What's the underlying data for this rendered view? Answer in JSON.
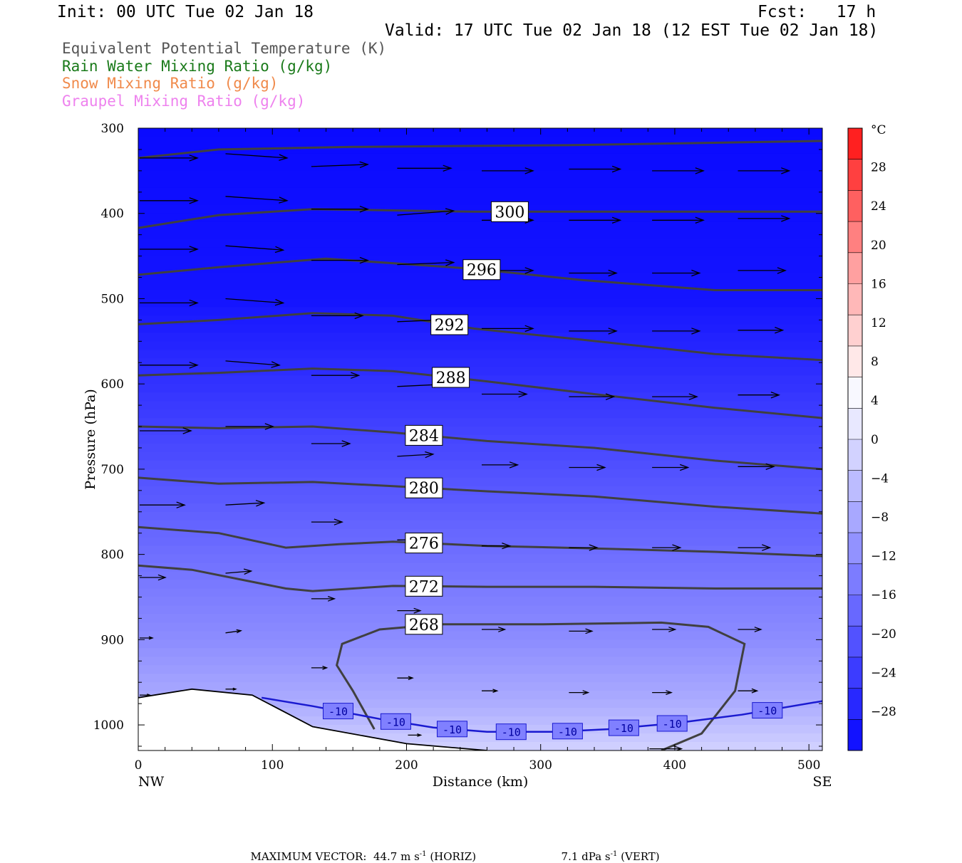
{
  "header": {
    "init": "Init: 00 UTC Tue 02 Jan 18",
    "fcst": "Fcst:   17 h",
    "valid": "Valid: 17 UTC Tue 02 Jan 18 (12 EST Tue 02 Jan 18)",
    "fields": [
      {
        "label": "Equivalent Potential Temperature (K)",
        "color": "#555555"
      },
      {
        "label": "Rain Water Mixing Ratio (g/kg)",
        "color": "#1a7a1a"
      },
      {
        "label": "Snow Mixing Ratio (g/kg)",
        "color": "#f08a4b"
      },
      {
        "label": "Graupel Mixing Ratio (g/kg)",
        "color": "#ee82ee"
      }
    ]
  },
  "footer": {
    "max_vector_label": "MAXIMUM VECTOR:",
    "horiz_value": "44.7 m s",
    "horiz_exp": "-1",
    "horiz_tag": "(HORIZ)",
    "vert_value": "7.1 dPa s",
    "vert_exp": "-1",
    "vert_tag": "(VERT)"
  },
  "chart_data": {
    "type": "cross-section",
    "xlabel": "Distance (km)",
    "ylabel": "Pressure (hPa)",
    "xlim": [
      0,
      510
    ],
    "ylim": [
      1030,
      300
    ],
    "x_ticks": [
      0,
      100,
      200,
      300,
      400,
      500
    ],
    "y_ticks": [
      300,
      400,
      500,
      600,
      700,
      800,
      900,
      1000
    ],
    "left_end_label": "NW",
    "right_end_label": "SE",
    "colorbar": {
      "unit": "°C",
      "labels": [
        28,
        24,
        20,
        16,
        12,
        8,
        4,
        0,
        -4,
        -8,
        -12,
        -16,
        -20,
        -24,
        -28
      ],
      "colors": [
        "#ff2020",
        "#ff4040",
        "#ff6060",
        "#ff8080",
        "#ffa0a0",
        "#ffb8b8",
        "#ffd0d0",
        "#ffe8e8",
        "#f8f8ff",
        "#e8e8ff",
        "#d2d2ff",
        "#bcbcff",
        "#a8a8ff",
        "#9292ff",
        "#7c7cff",
        "#6868ff",
        "#5252ff",
        "#3c3cff",
        "#2828ff",
        "#1212ff"
      ]
    },
    "temperature_shading": [
      {
        "p": 300,
        "t": -30
      },
      {
        "p": 500,
        "t": -28
      },
      {
        "p": 600,
        "t": -24
      },
      {
        "p": 700,
        "t": -20
      },
      {
        "p": 800,
        "t": -16
      },
      {
        "p": 900,
        "t": -12
      },
      {
        "p": 980,
        "t": -8
      },
      {
        "p": 1030,
        "t": -4
      }
    ],
    "theta_e_contours": [
      {
        "value": 300,
        "label_x": 277,
        "points": [
          [
            0,
            335
          ],
          [
            60,
            325
          ],
          [
            160,
            322
          ],
          [
            320,
            320
          ],
          [
            510,
            315
          ]
        ]
      },
      {
        "value": 300,
        "label_x": 277,
        "labeled": true,
        "points": [
          [
            0,
            417
          ],
          [
            60,
            402
          ],
          [
            130,
            395
          ],
          [
            250,
            398
          ],
          [
            400,
            398
          ],
          [
            510,
            398
          ]
        ]
      },
      {
        "value": 296,
        "label_x": 256,
        "labeled": true,
        "points": [
          [
            0,
            472
          ],
          [
            60,
            463
          ],
          [
            140,
            453
          ],
          [
            250,
            465
          ],
          [
            330,
            478
          ],
          [
            430,
            490
          ],
          [
            510,
            490
          ]
        ]
      },
      {
        "value": 292,
        "label_x": 232,
        "labeled": true,
        "points": [
          [
            0,
            530
          ],
          [
            60,
            525
          ],
          [
            130,
            517
          ],
          [
            190,
            520
          ],
          [
            250,
            535
          ],
          [
            330,
            548
          ],
          [
            430,
            565
          ],
          [
            510,
            572
          ]
        ]
      },
      {
        "value": 288,
        "label_x": 233,
        "labeled": true,
        "points": [
          [
            0,
            590
          ],
          [
            60,
            587
          ],
          [
            130,
            582
          ],
          [
            190,
            585
          ],
          [
            260,
            597
          ],
          [
            340,
            612
          ],
          [
            430,
            628
          ],
          [
            510,
            640
          ]
        ]
      },
      {
        "value": 284,
        "label_x": 213,
        "labeled": true,
        "points": [
          [
            0,
            650
          ],
          [
            60,
            652
          ],
          [
            130,
            650
          ],
          [
            190,
            657
          ],
          [
            260,
            667
          ],
          [
            340,
            675
          ],
          [
            430,
            690
          ],
          [
            510,
            700
          ]
        ]
      },
      {
        "value": 280,
        "label_x": 213,
        "labeled": true,
        "points": [
          [
            0,
            710
          ],
          [
            60,
            717
          ],
          [
            130,
            715
          ],
          [
            190,
            720
          ],
          [
            260,
            726
          ],
          [
            340,
            732
          ],
          [
            430,
            744
          ],
          [
            510,
            752
          ]
        ]
      },
      {
        "value": 276,
        "label_x": 213,
        "labeled": true,
        "points": [
          [
            0,
            768
          ],
          [
            60,
            775
          ],
          [
            110,
            792
          ],
          [
            150,
            788
          ],
          [
            190,
            785
          ],
          [
            260,
            790
          ],
          [
            340,
            793
          ],
          [
            430,
            797
          ],
          [
            510,
            802
          ]
        ]
      },
      {
        "value": 272,
        "label_x": 213,
        "labeled": true,
        "points": [
          [
            0,
            813
          ],
          [
            40,
            818
          ],
          [
            110,
            840
          ],
          [
            130,
            843
          ],
          [
            190,
            837
          ],
          [
            260,
            838
          ],
          [
            340,
            838
          ],
          [
            430,
            840
          ],
          [
            510,
            840
          ]
        ]
      },
      {
        "value": 268,
        "label_x": 213,
        "labeled": true,
        "closed_bottom": true,
        "points": [
          [
            176,
            1005
          ],
          [
            160,
            960
          ],
          [
            148,
            930
          ],
          [
            152,
            905
          ],
          [
            180,
            888
          ],
          [
            225,
            882
          ],
          [
            300,
            882
          ],
          [
            390,
            880
          ],
          [
            425,
            885
          ],
          [
            452,
            905
          ],
          [
            445,
            960
          ],
          [
            420,
            1010
          ],
          [
            390,
            1030
          ]
        ]
      }
    ],
    "isotherm_-10": {
      "value": -10,
      "label_xs": [
        149,
        192,
        234,
        278,
        320,
        362,
        398,
        469
      ],
      "points": [
        [
          92,
          968
        ],
        [
          130,
          978
        ],
        [
          180,
          993
        ],
        [
          220,
          1003
        ],
        [
          260,
          1008
        ],
        [
          310,
          1008
        ],
        [
          350,
          1005
        ],
        [
          400,
          998
        ],
        [
          450,
          988
        ],
        [
          510,
          972
        ]
      ]
    },
    "terrain_surface": [
      [
        0,
        968
      ],
      [
        40,
        958
      ],
      [
        85,
        965
      ],
      [
        130,
        1002
      ],
      [
        200,
        1022
      ],
      [
        260,
        1030
      ]
    ],
    "wind_arrows": [
      {
        "x": 0,
        "p": 335,
        "u": 45,
        "w": 0
      },
      {
        "x": 64,
        "p": 330,
        "u": 48,
        "w": 2
      },
      {
        "x": 128,
        "p": 345,
        "u": 44,
        "w": -1
      },
      {
        "x": 192,
        "p": 347,
        "u": 42,
        "w": 0
      },
      {
        "x": 255,
        "p": 350,
        "u": 40,
        "w": 0
      },
      {
        "x": 320,
        "p": 348,
        "u": 40,
        "w": 0
      },
      {
        "x": 382,
        "p": 350,
        "u": 40,
        "w": 0
      },
      {
        "x": 446,
        "p": 350,
        "u": 40,
        "w": 0
      },
      {
        "x": 0,
        "p": 385,
        "u": 45,
        "w": 0
      },
      {
        "x": 64,
        "p": 380,
        "u": 48,
        "w": 2
      },
      {
        "x": 128,
        "p": 395,
        "u": 44,
        "w": 0
      },
      {
        "x": 192,
        "p": 402,
        "u": 44,
        "w": -2
      },
      {
        "x": 255,
        "p": 408,
        "u": 40,
        "w": 0
      },
      {
        "x": 320,
        "p": 408,
        "u": 40,
        "w": 0
      },
      {
        "x": 382,
        "p": 408,
        "u": 40,
        "w": 0
      },
      {
        "x": 446,
        "p": 406,
        "u": 40,
        "w": 0
      },
      {
        "x": 0,
        "p": 442,
        "u": 45,
        "w": 0
      },
      {
        "x": 64,
        "p": 438,
        "u": 45,
        "w": 2
      },
      {
        "x": 128,
        "p": 455,
        "u": 44,
        "w": 0
      },
      {
        "x": 192,
        "p": 460,
        "u": 44,
        "w": -1
      },
      {
        "x": 255,
        "p": 467,
        "u": 40,
        "w": 0
      },
      {
        "x": 320,
        "p": 470,
        "u": 37,
        "w": 0
      },
      {
        "x": 382,
        "p": 470,
        "u": 37,
        "w": 0
      },
      {
        "x": 446,
        "p": 467,
        "u": 37,
        "w": 0
      },
      {
        "x": 0,
        "p": 505,
        "u": 45,
        "w": 0
      },
      {
        "x": 64,
        "p": 500,
        "u": 45,
        "w": 2
      },
      {
        "x": 128,
        "p": 520,
        "u": 40,
        "w": 0
      },
      {
        "x": 192,
        "p": 527,
        "u": 40,
        "w": -1
      },
      {
        "x": 255,
        "p": 535,
        "u": 40,
        "w": 0
      },
      {
        "x": 320,
        "p": 538,
        "u": 37,
        "w": 0
      },
      {
        "x": 382,
        "p": 538,
        "u": 37,
        "w": 0
      },
      {
        "x": 446,
        "p": 537,
        "u": 35,
        "w": 0
      },
      {
        "x": 0,
        "p": 578,
        "u": 45,
        "w": 0
      },
      {
        "x": 64,
        "p": 573,
        "u": 42,
        "w": 2
      },
      {
        "x": 128,
        "p": 590,
        "u": 37,
        "w": 0
      },
      {
        "x": 192,
        "p": 603,
        "u": 35,
        "w": -1
      },
      {
        "x": 255,
        "p": 612,
        "u": 35,
        "w": 0
      },
      {
        "x": 320,
        "p": 615,
        "u": 35,
        "w": 0
      },
      {
        "x": 382,
        "p": 615,
        "u": 35,
        "w": 0
      },
      {
        "x": 446,
        "p": 613,
        "u": 32,
        "w": 0
      },
      {
        "x": 0,
        "p": 655,
        "u": 40,
        "w": 0
      },
      {
        "x": 64,
        "p": 650,
        "u": 37,
        "w": 0
      },
      {
        "x": 128,
        "p": 670,
        "u": 30,
        "w": 0
      },
      {
        "x": 192,
        "p": 685,
        "u": 28,
        "w": -1
      },
      {
        "x": 255,
        "p": 695,
        "u": 28,
        "w": 0
      },
      {
        "x": 320,
        "p": 698,
        "u": 28,
        "w": 0
      },
      {
        "x": 382,
        "p": 698,
        "u": 28,
        "w": 0
      },
      {
        "x": 446,
        "p": 697,
        "u": 28,
        "w": 0
      },
      {
        "x": 0,
        "p": 742,
        "u": 35,
        "w": 0
      },
      {
        "x": 64,
        "p": 742,
        "u": 30,
        "w": -1
      },
      {
        "x": 128,
        "p": 762,
        "u": 24,
        "w": 0
      },
      {
        "x": 192,
        "p": 783,
        "u": 22,
        "w": 0
      },
      {
        "x": 255,
        "p": 790,
        "u": 22,
        "w": 0
      },
      {
        "x": 320,
        "p": 792,
        "u": 22,
        "w": 0
      },
      {
        "x": 382,
        "p": 792,
        "u": 22,
        "w": 0
      },
      {
        "x": 446,
        "p": 792,
        "u": 25,
        "w": 0
      },
      {
        "x": 0,
        "p": 827,
        "u": 20,
        "w": 0
      },
      {
        "x": 64,
        "p": 822,
        "u": 20,
        "w": -1
      },
      {
        "x": 128,
        "p": 852,
        "u": 18,
        "w": 0
      },
      {
        "x": 192,
        "p": 866,
        "u": 18,
        "w": 0
      },
      {
        "x": 255,
        "p": 888,
        "u": 18,
        "w": 0
      },
      {
        "x": 320,
        "p": 890,
        "u": 18,
        "w": 0
      },
      {
        "x": 382,
        "p": 888,
        "u": 18,
        "w": 0
      },
      {
        "x": 446,
        "p": 888,
        "u": 18,
        "w": 0
      },
      {
        "x": 0,
        "p": 898,
        "u": 10,
        "w": 0
      },
      {
        "x": 64,
        "p": 892,
        "u": 12,
        "w": -1
      },
      {
        "x": 128,
        "p": 933,
        "u": 12,
        "w": 0
      },
      {
        "x": 192,
        "p": 945,
        "u": 12,
        "w": 0
      },
      {
        "x": 255,
        "p": 960,
        "u": 12,
        "w": 0
      },
      {
        "x": 320,
        "p": 962,
        "u": 15,
        "w": 0
      },
      {
        "x": 382,
        "p": 962,
        "u": 15,
        "w": 0
      },
      {
        "x": 446,
        "p": 960,
        "u": 15,
        "w": 0
      },
      {
        "x": 0,
        "p": 965,
        "u": 8,
        "w": 0
      },
      {
        "x": 64,
        "p": 958,
        "u": 8,
        "w": 0
      },
      {
        "x": 200,
        "p": 1012,
        "u": 10,
        "w": 0
      },
      {
        "x": 380,
        "p": 1028,
        "u": 25,
        "w": 0
      }
    ]
  }
}
